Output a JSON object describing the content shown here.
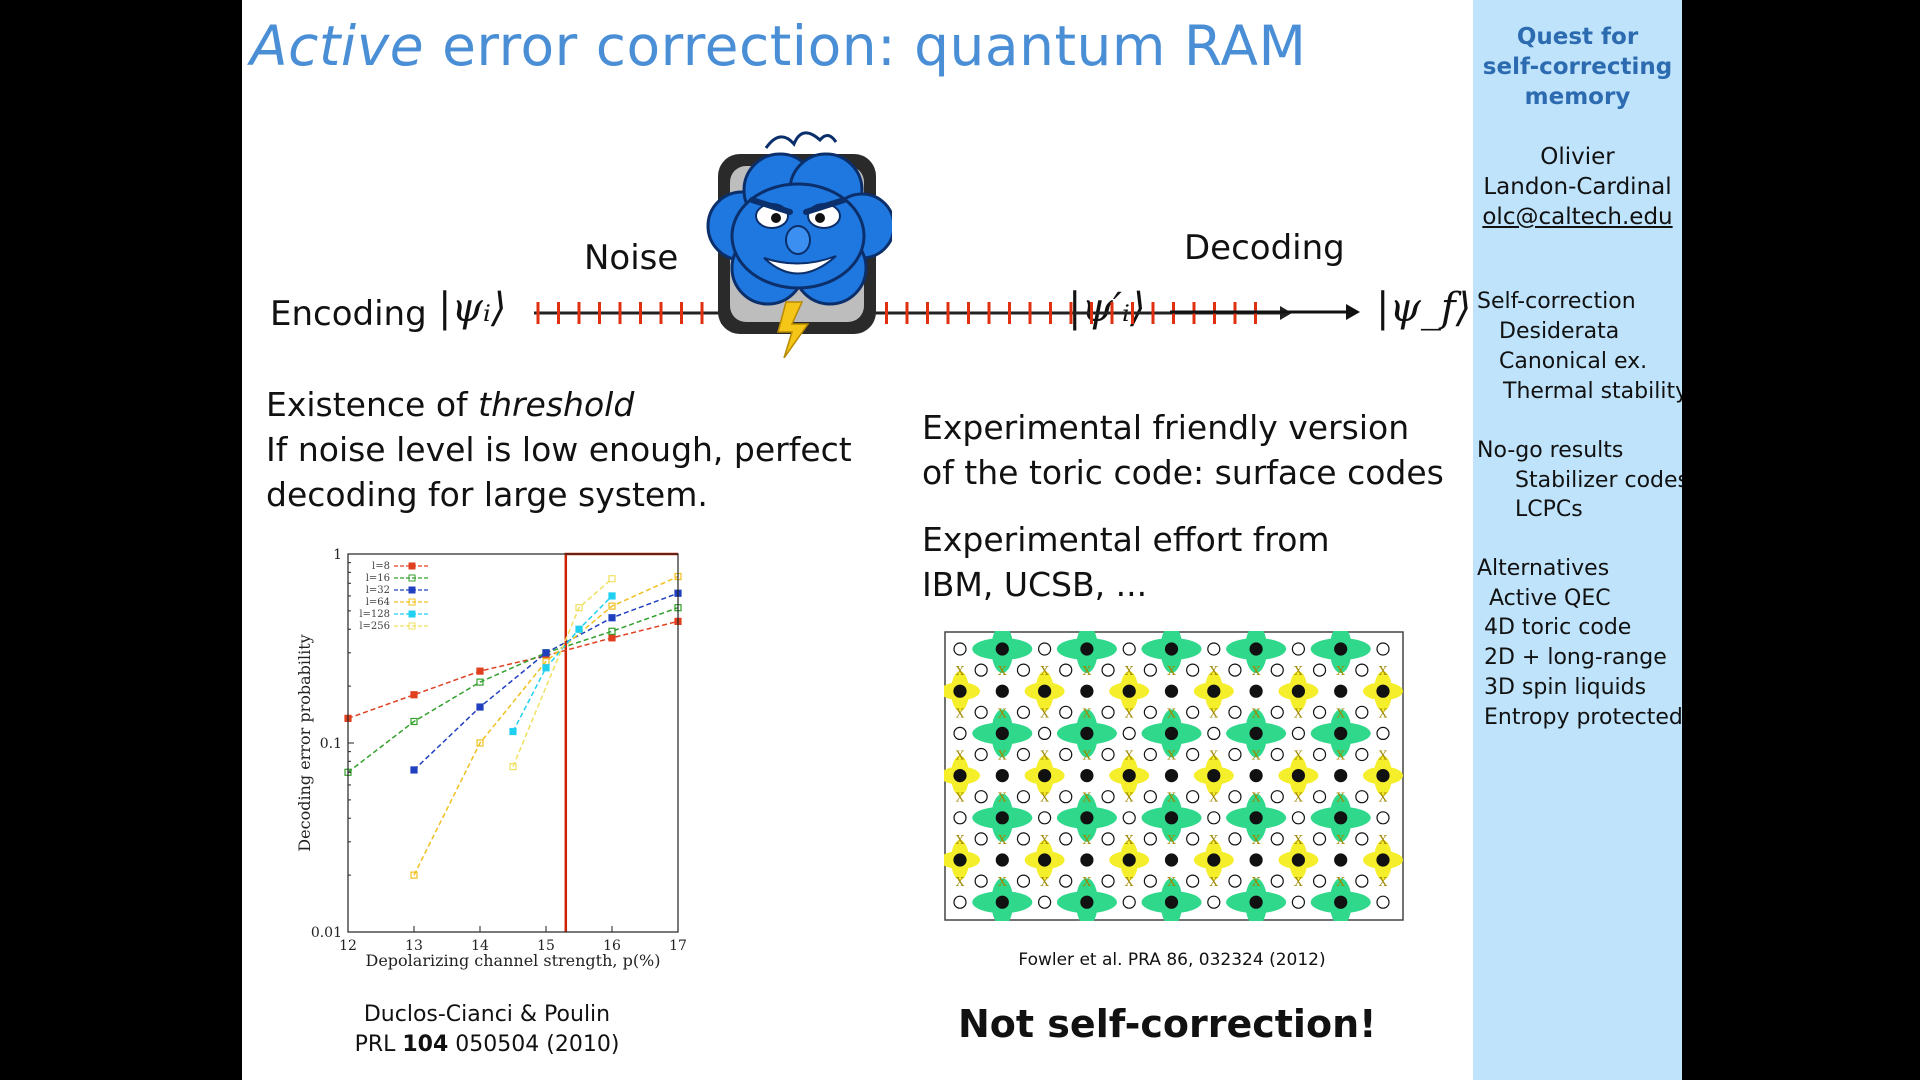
{
  "slide": {
    "title_italic": "Active",
    "title_rest": " error correction: quantum RAM",
    "diagram": {
      "encoding": "Encoding",
      "noise": "Noise",
      "decoding": "Decoding",
      "psi_i": "|ψᵢ⟩",
      "psi_i_prime": "|ψ′ᵢ⟩",
      "psi_f": "|ψ_f⟩",
      "cloud_icon": "angry-storm-cloud-icon"
    },
    "threshold": {
      "line1_plain": "Existence of ",
      "line1_italic": "threshold",
      "line2": "If noise level is low enough, perfect",
      "line3": "decoding for large system."
    },
    "surface": {
      "line1": "Experimental friendly version",
      "line2": "of the toric code: surface codes",
      "line3": "Experimental effort from",
      "line4": "IBM, UCSB, ..."
    },
    "citation_left": {
      "line1": "Duclos-Cianci & Poulin",
      "line2_a": "PRL ",
      "line2_b": "104",
      "line2_c": " 050504 (2010)"
    },
    "citation_right": "Fowler et al. PRA 86, 032324 (2012)",
    "not_self_correction": "Not self-correction!",
    "lattice_legend": {
      "x_marker": "X"
    }
  },
  "sidebar": {
    "title_lines": [
      "Quest for",
      "self-correcting",
      "memory"
    ],
    "author_lines": [
      "Olivier",
      "Landon-Cardinal"
    ],
    "email": "olc@caltech.edu",
    "items": [
      "Self-correction",
      "Desiderata",
      "Canonical ex.",
      "Thermal stability",
      "No-go results",
      "Stabilizer codes",
      "LCPCs",
      "Alternatives",
      "Active QEC",
      "4D toric code",
      "2D + long-range",
      "3D spin liquids",
      "Entropy protected"
    ]
  },
  "chart_data": {
    "type": "line",
    "xlabel": "Depolarizing channel strength, p(%)",
    "ylabel": "Decoding error probability",
    "xlim": [
      12,
      17
    ],
    "ylim": [
      0.01,
      1
    ],
    "yscale": "log",
    "xticks": [
      "12",
      "13",
      "14",
      "15",
      "16",
      "17"
    ],
    "yticks": [
      "0.01",
      "0.1",
      "1"
    ],
    "legend_position": "top-left",
    "series": [
      {
        "name": "l=8",
        "color": "#e04020",
        "x": [
          12,
          13,
          14,
          15,
          16,
          17
        ],
        "y": [
          0.135,
          0.18,
          0.24,
          0.29,
          0.36,
          0.44
        ]
      },
      {
        "name": "l=16",
        "color": "#33a02c",
        "x": [
          12,
          13,
          14,
          15,
          16,
          17
        ],
        "y": [
          0.07,
          0.13,
          0.21,
          0.3,
          0.39,
          0.52
        ]
      },
      {
        "name": "l=32",
        "color": "#2040c0",
        "x": [
          13,
          14,
          15,
          16,
          17
        ],
        "y": [
          0.072,
          0.155,
          0.3,
          0.46,
          0.62
        ]
      },
      {
        "name": "l=64",
        "color": "#f0c020",
        "x": [
          13,
          14,
          15,
          16,
          17
        ],
        "y": [
          0.02,
          0.1,
          0.27,
          0.53,
          0.76
        ]
      },
      {
        "name": "l=128",
        "color": "#20d0f0",
        "x": [
          14.5,
          15,
          15.5,
          16
        ],
        "y": [
          0.115,
          0.25,
          0.4,
          0.6
        ]
      },
      {
        "name": "l=256",
        "color": "#f0e060",
        "x": [
          14.5,
          15.5,
          16
        ],
        "y": [
          0.075,
          0.52,
          0.74
        ]
      }
    ],
    "threshold_line": {
      "color": "#cc2200",
      "x": 15.3,
      "y_low": 0.01,
      "y_high": 1
    }
  },
  "colors": {
    "title": "#4a8fd6",
    "sidebar_bg": "#bfe3fb",
    "sidebar_title": "#2c6bb0",
    "noise_ticks": "#e03010",
    "plaquette_green": "#2fd88a",
    "plaquette_yellow": "#f5ee2a"
  }
}
